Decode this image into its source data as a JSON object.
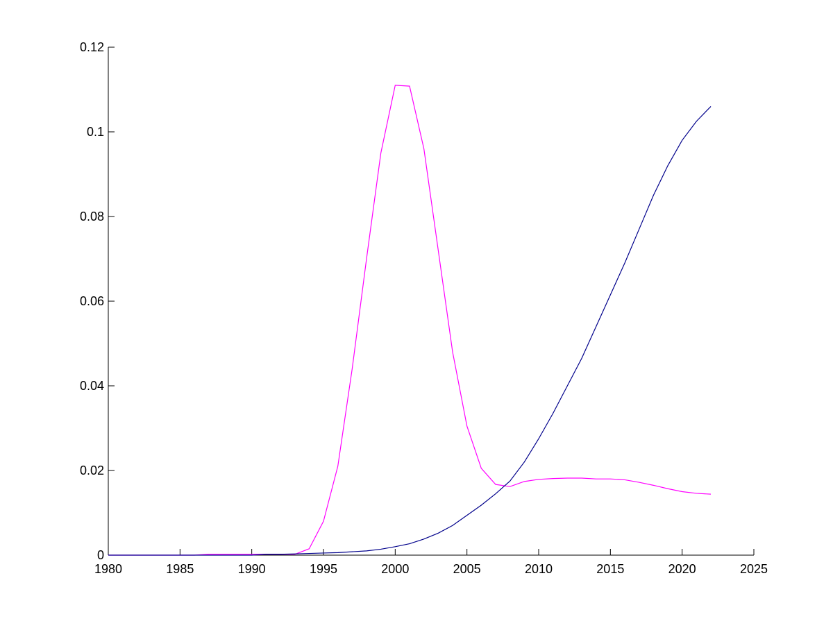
{
  "chart_data": {
    "type": "line",
    "x": [
      1980,
      1981,
      1982,
      1983,
      1984,
      1985,
      1986,
      1987,
      1988,
      1989,
      1990,
      1991,
      1992,
      1993,
      1994,
      1995,
      1996,
      1997,
      1998,
      1999,
      2000,
      2001,
      2002,
      2003,
      2004,
      2005,
      2006,
      2007,
      2008,
      2009,
      2010,
      2011,
      2012,
      2013,
      2014,
      2015,
      2016,
      2017,
      2018,
      2019,
      2020,
      2021,
      2022
    ],
    "series": [
      {
        "color": "#ff00ff",
        "values": [
          0,
          0,
          0,
          0,
          0,
          0,
          0,
          0.0002,
          0.0002,
          0.0002,
          0.0002,
          0.0002,
          0.0002,
          0.0002,
          0.0015,
          0.008,
          0.021,
          0.044,
          0.07,
          0.095,
          0.111,
          0.1108,
          0.096,
          0.072,
          0.048,
          0.0305,
          0.0205,
          0.0167,
          0.0162,
          0.0174,
          0.0179,
          0.0181,
          0.0182,
          0.0182,
          0.018,
          0.018,
          0.0178,
          0.0172,
          0.0165,
          0.0157,
          0.015,
          0.0146,
          0.0144
        ]
      },
      {
        "color": "#00008b",
        "values": [
          0,
          0,
          0,
          0,
          0,
          0,
          0,
          0,
          0,
          0,
          0,
          0.0002,
          0.0002,
          0.0003,
          0.0004,
          0.0005,
          0.0006,
          0.0008,
          0.001,
          0.0014,
          0.002,
          0.0027,
          0.0038,
          0.0052,
          0.007,
          0.0094,
          0.0118,
          0.0145,
          0.0175,
          0.022,
          0.0275,
          0.0335,
          0.04,
          0.0465,
          0.054,
          0.0615,
          0.069,
          0.077,
          0.085,
          0.092,
          0.098,
          0.1025,
          0.106
        ]
      }
    ],
    "xlim": [
      1980,
      2025
    ],
    "xticks": [
      1980,
      1985,
      1990,
      1995,
      2000,
      2005,
      2010,
      2015,
      2020,
      2025
    ],
    "ylim": [
      0,
      0.12
    ],
    "yticks": [
      0,
      0.02,
      0.04,
      0.06,
      0.08,
      0.1,
      0.12
    ]
  }
}
